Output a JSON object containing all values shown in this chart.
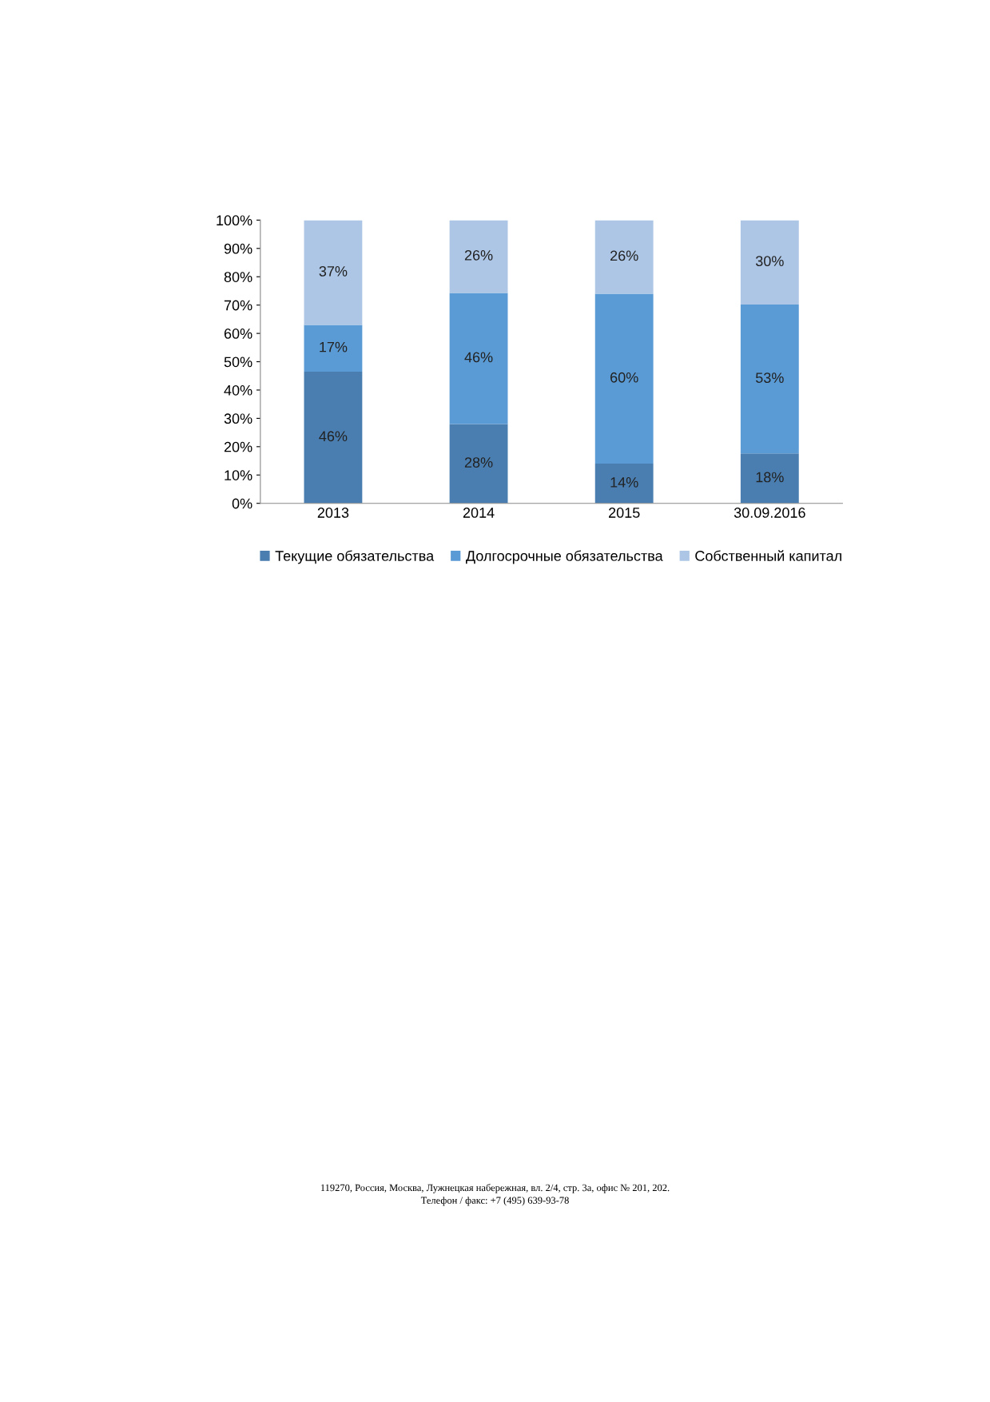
{
  "chart_data": {
    "type": "bar",
    "stacked": true,
    "categories": [
      "2013",
      "2014",
      "2015",
      "30.09.2016"
    ],
    "series": [
      {
        "name": "Текущие обязательства",
        "color": "#4a7eb0",
        "values": [
          46.5,
          28,
          14,
          17.6
        ],
        "value_labels": [
          "46%",
          "28%",
          "14%",
          "18%"
        ]
      },
      {
        "name": "Долгосрочные обязательства",
        "color": "#5b9bd5",
        "values": [
          16.5,
          46.3,
          60,
          52.6
        ],
        "value_labels": [
          "17%",
          "46%",
          "60%",
          "53%"
        ]
      },
      {
        "name": "Собственный капитал",
        "color": "#adc6e5",
        "values": [
          37,
          25.7,
          26,
          29.8
        ],
        "value_labels": [
          "37%",
          "26%",
          "26%",
          "30%"
        ]
      }
    ],
    "ylim": [
      0,
      100
    ],
    "yticks": [
      {
        "value": 0,
        "label": "0%"
      },
      {
        "value": 10,
        "label": "10%"
      },
      {
        "value": 20,
        "label": "20%"
      },
      {
        "value": 30,
        "label": "30%"
      },
      {
        "value": 40,
        "label": "40%"
      },
      {
        "value": 50,
        "label": "50%"
      },
      {
        "value": 60,
        "label": "60%"
      },
      {
        "value": 70,
        "label": "70%"
      },
      {
        "value": 80,
        "label": "80%"
      },
      {
        "value": 90,
        "label": "90%"
      },
      {
        "value": 100,
        "label": "100%"
      }
    ],
    "grid": false,
    "legend": "bottom",
    "annotations": [
      "119270, Россия, Москва, Лужнецкая набережная, вл. 2/4, стр. 3а, офис № 201, 202.",
      "Телефон / факс: +7 (495) 639-93-78"
    ]
  }
}
